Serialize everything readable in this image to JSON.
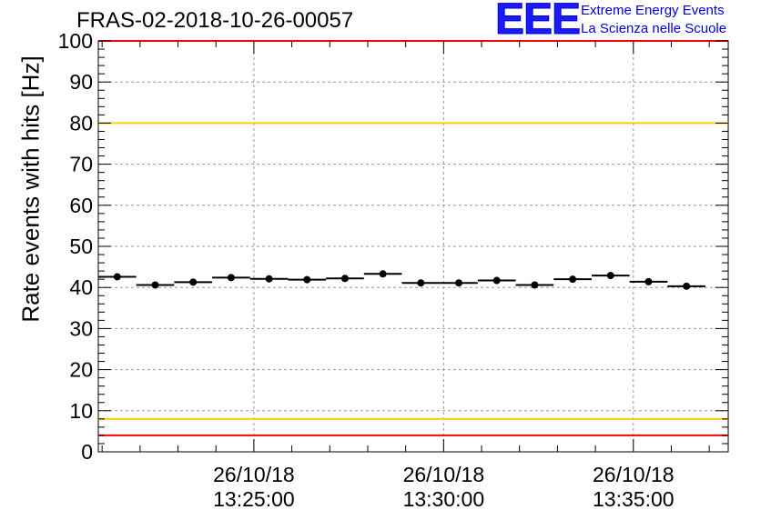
{
  "header": {
    "run_title": "FRAS-02-2018-10-26-00057"
  },
  "logo": {
    "mark": "EEE",
    "line1": "Extreme Energy Events",
    "line2": "La Scienza nelle Scuole"
  },
  "colors": {
    "limit_red": "#ff0000",
    "limit_yellow": "#ffcc00",
    "logo_blue": "#0000dd",
    "grid": "#999999"
  },
  "chart_data": {
    "type": "scatter",
    "title": "FRAS-02-2018-10-26-00057",
    "xlabel": "",
    "ylabel": "Rate events with hits [Hz]",
    "ylim": [
      0,
      100
    ],
    "xlim_min": [
      20.9,
      37.5
    ],
    "yticks": [
      0,
      10,
      20,
      30,
      40,
      50,
      60,
      70,
      80,
      90,
      100
    ],
    "xticks": [
      {
        "min": 25,
        "date": "26/10/18",
        "time": "13:25:00"
      },
      {
        "min": 30,
        "date": "26/10/18",
        "time": "13:30:00"
      },
      {
        "min": 35,
        "date": "26/10/18",
        "time": "13:35:00"
      }
    ],
    "grid": true,
    "bin_width_min": 1.0,
    "series": [
      {
        "name": "rate",
        "x_min": [
          21.4,
          22.4,
          23.4,
          24.4,
          25.4,
          26.4,
          27.4,
          28.4,
          29.4,
          30.4,
          31.4,
          32.4,
          33.4,
          34.4,
          35.4,
          36.4
        ],
        "values": [
          42.6,
          40.6,
          41.3,
          42.4,
          42.1,
          41.9,
          42.2,
          43.3,
          41.1,
          41.1,
          41.7,
          40.6,
          42.0,
          42.9,
          41.4,
          40.3
        ]
      }
    ],
    "reference_lines": [
      {
        "name": "upper-red",
        "y": 100,
        "color": "#ff0000"
      },
      {
        "name": "upper-yellow",
        "y": 80,
        "color": "#ffcc00"
      },
      {
        "name": "lower-yellow",
        "y": 8,
        "color": "#ffcc00"
      },
      {
        "name": "lower-red",
        "y": 4,
        "color": "#ff0000"
      }
    ]
  }
}
